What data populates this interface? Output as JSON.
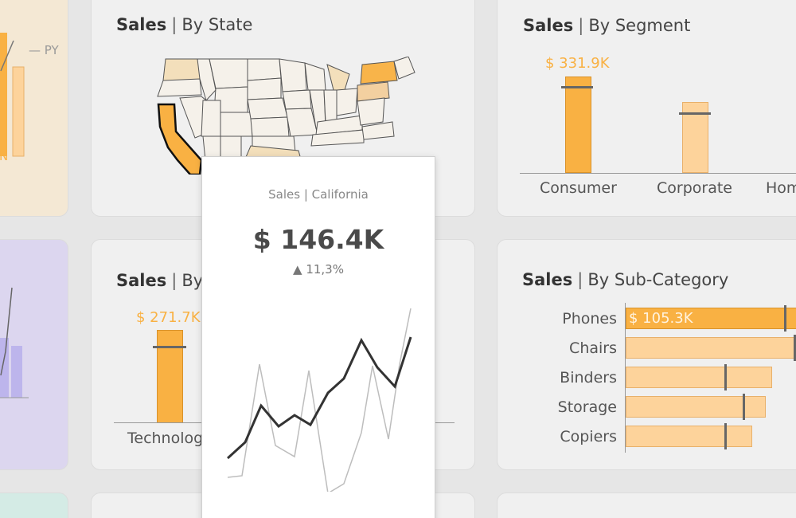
{
  "colors": {
    "highlight": "#f9b143",
    "light": "#fdd39b",
    "background": "#e6e6e6",
    "card": "#f0f0f0"
  },
  "left_cards": {
    "top_py_label": "— PY",
    "top_partial_letter": "N"
  },
  "state_card": {
    "title_bold": "Sales",
    "title_rest": "By State",
    "selected_state": "California"
  },
  "segment_card": {
    "title_bold": "Sales",
    "title_rest": "By Segment",
    "top_value": "$ 331.9K",
    "categories": [
      "Consumer",
      "Corporate",
      "Hom"
    ]
  },
  "category_card": {
    "title_bold": "Sales",
    "title_rest": "By",
    "top_value": "$ 271.7K",
    "category_label": "Technolog"
  },
  "subcategory_card": {
    "title_bold": "Sales",
    "title_rest": "By Sub-Category",
    "rows": [
      {
        "label": "Phones",
        "value_label": "$ 105.3K"
      },
      {
        "label": "Chairs"
      },
      {
        "label": "Binders"
      },
      {
        "label": "Storage"
      },
      {
        "label": "Copiers"
      }
    ]
  },
  "tooltip": {
    "subtitle": "Sales | California",
    "value": "$ 146.4K",
    "delta": "▲ 11,3%"
  }
}
